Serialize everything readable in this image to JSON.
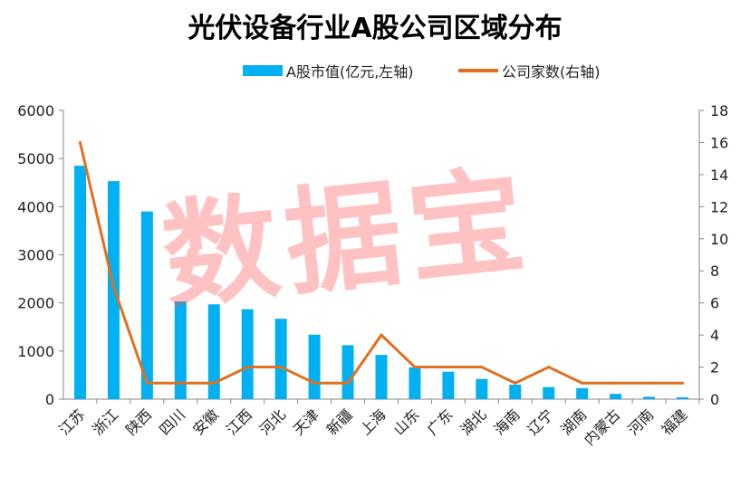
{
  "chart_data": {
    "type": "bar",
    "title": "光伏设备行业A股公司区域分布",
    "categories": [
      "江苏",
      "浙江",
      "陕西",
      "四川",
      "安徽",
      "江西",
      "河北",
      "天津",
      "新疆",
      "上海",
      "山东",
      "广东",
      "湖北",
      "海南",
      "辽宁",
      "湖南",
      "内蒙古",
      "河南",
      "福建"
    ],
    "series": [
      {
        "name": "A股市值(亿元,左轴)",
        "type": "bar",
        "axis": "left",
        "color": "#00b0f0",
        "values": [
          4850,
          4530,
          3900,
          2030,
          1970,
          1870,
          1670,
          1340,
          1120,
          920,
          660,
          570,
          420,
          300,
          250,
          230,
          110,
          50,
          40
        ]
      },
      {
        "name": "公司家数(右轴)",
        "type": "line",
        "axis": "right",
        "color": "#e07020",
        "values": [
          16,
          7,
          1,
          1,
          1,
          2,
          2,
          1,
          1,
          4,
          2,
          2,
          2,
          1,
          2,
          1,
          1,
          1,
          1
        ]
      }
    ],
    "y_left": {
      "min": 0,
      "max": 6000,
      "ticks": [
        0,
        1000,
        2000,
        3000,
        4000,
        5000,
        6000
      ]
    },
    "y_right": {
      "min": 0,
      "max": 18,
      "ticks": [
        0,
        2,
        4,
        6,
        8,
        10,
        12,
        14,
        16,
        18
      ]
    },
    "grid": false,
    "legend_position": "top-right"
  },
  "watermark": "数据宝"
}
